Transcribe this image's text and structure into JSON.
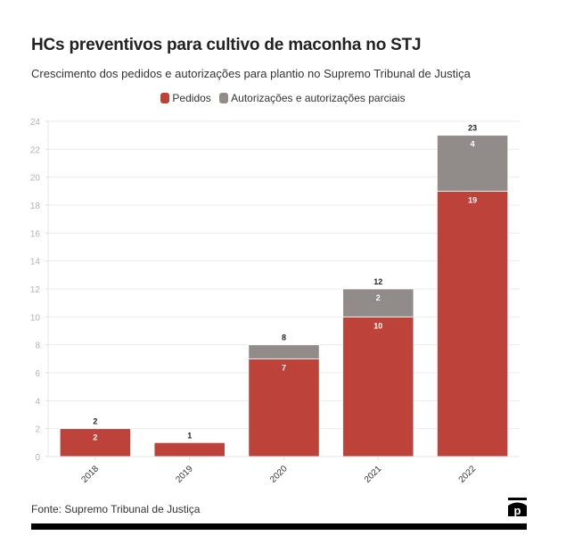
{
  "header": {
    "title": "HCs preventivos para cultivo de maconha no STJ",
    "subtitle": "Crescimento dos pedidos e autorizações para plantio no Supremo Tribunal de Justiça"
  },
  "legend": [
    {
      "label": "Pedidos",
      "color": "#bd433a"
    },
    {
      "label": "Autorizações e autorizações parciais",
      "color": "#918b8a"
    }
  ],
  "footer": {
    "source": "Fonte: Supremo Tribunal de Justiça",
    "logo_icon": "poder360-p-logo-icon"
  },
  "chart_data": {
    "type": "bar",
    "stacked": true,
    "title": "HCs preventivos para cultivo de maconha no STJ",
    "subtitle": "Crescimento dos pedidos e autorizações para plantio no Supremo Tribunal de Justiça",
    "categories": [
      "2018",
      "2019",
      "2020",
      "2021",
      "2022"
    ],
    "series": [
      {
        "name": "Pedidos",
        "color": "#bd433a",
        "values": [
          2,
          1,
          7,
          10,
          19
        ],
        "labels": [
          "2",
          "",
          "7",
          "10",
          "19"
        ]
      },
      {
        "name": "Autorizações e autorizações parciais",
        "color": "#918b8a",
        "values": [
          0,
          0,
          1,
          2,
          4
        ],
        "labels": [
          "",
          "",
          "",
          "2",
          "4"
        ]
      }
    ],
    "totals": [
      2,
      1,
      8,
      12,
      23
    ],
    "xlabel": "",
    "ylabel": "",
    "ylim": [
      0,
      24
    ],
    "yticks": [
      0,
      2,
      4,
      6,
      8,
      10,
      12,
      14,
      16,
      18,
      20,
      22,
      24
    ],
    "grid": true,
    "legend_position": "top-center",
    "xtick_rotation": -45
  }
}
